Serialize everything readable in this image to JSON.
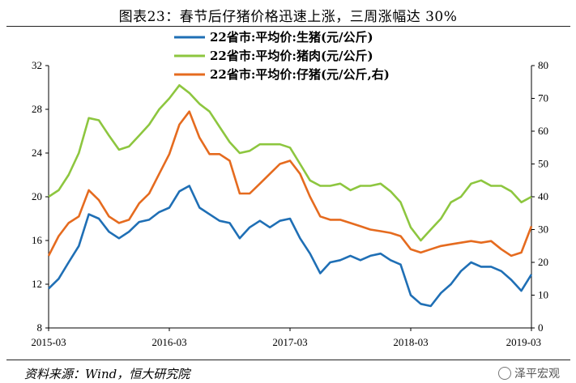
{
  "title": "图表23：春节后仔猪价格迅速上涨，三周涨幅达 30%",
  "source": "资料来源：Wind，恒大研究院",
  "watermark": "泽平宏观",
  "chart_data": {
    "type": "line",
    "left_axis": {
      "ticks": [
        "8",
        "12",
        "16",
        "20",
        "24",
        "28",
        "32"
      ],
      "ylim": [
        8,
        32
      ]
    },
    "right_axis": {
      "ticks": [
        "0",
        "10",
        "20",
        "30",
        "40",
        "50",
        "60",
        "70",
        "80"
      ],
      "ylim": [
        0,
        80
      ]
    },
    "x_ticks": [
      "2015-03",
      "2016-03",
      "2017-03",
      "2018-03",
      "2019-03"
    ],
    "x_tick_values": [
      2015.167,
      2016.167,
      2017.167,
      2018.167,
      2019.167
    ],
    "xlim": [
      2015.167,
      2019.167
    ],
    "series": [
      {
        "name": "22省市:平均价:生猪(元/公斤)",
        "axis": "left",
        "color": "#1f6fb5",
        "x": [
          2015.167,
          2015.25,
          2015.333,
          2015.417,
          2015.5,
          2015.583,
          2015.667,
          2015.75,
          2015.833,
          2015.917,
          2016.0,
          2016.083,
          2016.167,
          2016.25,
          2016.333,
          2016.417,
          2016.5,
          2016.583,
          2016.667,
          2016.75,
          2016.833,
          2016.917,
          2017.0,
          2017.083,
          2017.167,
          2017.25,
          2017.333,
          2017.417,
          2017.5,
          2017.583,
          2017.667,
          2017.75,
          2017.833,
          2017.917,
          2018.0,
          2018.083,
          2018.167,
          2018.25,
          2018.333,
          2018.417,
          2018.5,
          2018.583,
          2018.667,
          2018.75,
          2018.833,
          2018.917,
          2019.0,
          2019.083,
          2019.167
        ],
        "values": [
          11.6,
          12.5,
          14.0,
          15.5,
          18.4,
          18.0,
          16.8,
          16.2,
          16.8,
          17.7,
          17.9,
          18.6,
          19.0,
          20.5,
          21.0,
          19.0,
          18.4,
          17.8,
          17.6,
          16.2,
          17.2,
          17.8,
          17.2,
          17.8,
          18.0,
          16.2,
          14.8,
          13.0,
          14.0,
          14.2,
          14.6,
          14.2,
          14.6,
          14.8,
          14.2,
          13.8,
          11.0,
          10.2,
          10.0,
          11.2,
          12.0,
          13.2,
          14.0,
          13.6,
          13.6,
          13.2,
          12.4,
          11.4,
          12.9
        ]
      },
      {
        "name": "22省市:平均价:猪肉(元/公斤)",
        "axis": "left",
        "color": "#8dc63f",
        "x": [
          2015.167,
          2015.25,
          2015.333,
          2015.417,
          2015.5,
          2015.583,
          2015.667,
          2015.75,
          2015.833,
          2015.917,
          2016.0,
          2016.083,
          2016.167,
          2016.25,
          2016.333,
          2016.417,
          2016.5,
          2016.583,
          2016.667,
          2016.75,
          2016.833,
          2016.917,
          2017.0,
          2017.083,
          2017.167,
          2017.25,
          2017.333,
          2017.417,
          2017.5,
          2017.583,
          2017.667,
          2017.75,
          2017.833,
          2017.917,
          2018.0,
          2018.083,
          2018.167,
          2018.25,
          2018.333,
          2018.417,
          2018.5,
          2018.583,
          2018.667,
          2018.75,
          2018.833,
          2018.917,
          2019.0,
          2019.083,
          2019.167
        ],
        "values": [
          20.0,
          20.6,
          22.0,
          24.0,
          27.2,
          27.0,
          25.6,
          24.3,
          24.6,
          25.6,
          26.6,
          28.0,
          29.0,
          30.2,
          29.5,
          28.5,
          27.8,
          26.4,
          25.0,
          24.0,
          24.2,
          24.8,
          24.8,
          24.8,
          24.5,
          23.0,
          21.5,
          21.0,
          21.0,
          21.2,
          20.6,
          21.0,
          21.0,
          21.2,
          20.5,
          19.5,
          17.2,
          16.0,
          17.0,
          18.0,
          19.5,
          20.0,
          21.2,
          21.5,
          21.0,
          21.0,
          20.5,
          19.5,
          20.0
        ]
      },
      {
        "name": "22省市:平均价:仔猪(元/公斤,右)",
        "axis": "right",
        "color": "#e56b1f",
        "x": [
          2015.167,
          2015.25,
          2015.333,
          2015.417,
          2015.5,
          2015.583,
          2015.667,
          2015.75,
          2015.833,
          2015.917,
          2016.0,
          2016.083,
          2016.167,
          2016.25,
          2016.333,
          2016.417,
          2016.5,
          2016.583,
          2016.667,
          2016.75,
          2016.833,
          2016.917,
          2017.0,
          2017.083,
          2017.167,
          2017.25,
          2017.333,
          2017.417,
          2017.5,
          2017.583,
          2017.667,
          2017.75,
          2017.833,
          2017.917,
          2018.0,
          2018.083,
          2018.167,
          2018.25,
          2018.333,
          2018.417,
          2018.5,
          2018.583,
          2018.667,
          2018.75,
          2018.833,
          2018.917,
          2019.0,
          2019.083,
          2019.167
        ],
        "values": [
          22.0,
          28.0,
          32.0,
          34.0,
          42.0,
          39.0,
          34.0,
          32.0,
          33.0,
          38.0,
          41.0,
          47.0,
          53.0,
          62.0,
          66.0,
          58.0,
          53.0,
          53.0,
          51.0,
          41.0,
          41.0,
          44.0,
          47.0,
          50.0,
          51.0,
          47.0,
          40.0,
          34.0,
          33.0,
          33.0,
          32.0,
          31.0,
          30.0,
          29.5,
          29.0,
          28.0,
          24.0,
          23.0,
          24.0,
          25.0,
          25.5,
          26.0,
          26.5,
          26.0,
          26.5,
          24.0,
          22.0,
          23.0,
          31.0
        ]
      }
    ]
  }
}
